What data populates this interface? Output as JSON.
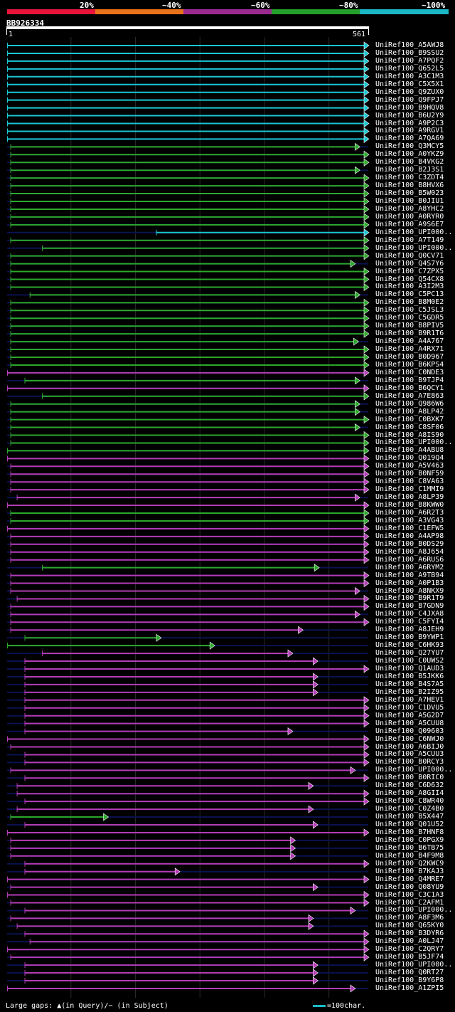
{
  "legend": {
    "labels": [
      "20%",
      "~40%",
      "~60%",
      "~80%",
      "~100%"
    ],
    "colors": [
      "#e8153a",
      "#e8731a",
      "#9b2a90",
      "#23a02a",
      "#1ab8c4"
    ]
  },
  "query": {
    "id": "BB926334",
    "start": "1",
    "end": "561",
    "length": 561
  },
  "colors": {
    "cyan": "#19c6d0",
    "green": "#2ca82c",
    "magenta": "#b43cb6",
    "navy": "#0b1250"
  },
  "hits": [
    {
      "name": "UniRef100_A5AWJ8",
      "c": "cyan",
      "s": 1,
      "e": 561
    },
    {
      "name": "UniRef100_B9SSU2",
      "c": "cyan",
      "s": 1,
      "e": 561
    },
    {
      "name": "UniRef100_A7PQF2",
      "c": "cyan",
      "s": 1,
      "e": 561
    },
    {
      "name": "UniRef100_Q652L5",
      "c": "cyan",
      "s": 1,
      "e": 561
    },
    {
      "name": "UniRef100_A3C1M3",
      "c": "cyan",
      "s": 1,
      "e": 561
    },
    {
      "name": "UniRef100_C5X5X1",
      "c": "cyan",
      "s": 1,
      "e": 561
    },
    {
      "name": "UniRef100_Q9ZUX0",
      "c": "cyan",
      "s": 1,
      "e": 561
    },
    {
      "name": "UniRef100_Q9FPJ7",
      "c": "cyan",
      "s": 1,
      "e": 561
    },
    {
      "name": "UniRef100_B9HQV8",
      "c": "cyan",
      "s": 1,
      "e": 561
    },
    {
      "name": "UniRef100_B6U2Y9",
      "c": "cyan",
      "s": 1,
      "e": 561
    },
    {
      "name": "UniRef100_A9P2C3",
      "c": "cyan",
      "s": 1,
      "e": 561
    },
    {
      "name": "UniRef100_A9RGV1",
      "c": "cyan",
      "s": 1,
      "e": 561
    },
    {
      "name": "UniRef100_A7QA69",
      "c": "cyan",
      "s": 1,
      "e": 561
    },
    {
      "name": "UniRef100_Q3MCY5",
      "c": "green",
      "s": 6,
      "e": 547
    },
    {
      "name": "UniRef100_A0YKZ9",
      "c": "green",
      "s": 6,
      "e": 561
    },
    {
      "name": "UniRef100_B4VKG2",
      "c": "green",
      "s": 6,
      "e": 561
    },
    {
      "name": "UniRef100_B2J3S1",
      "c": "green",
      "s": 6,
      "e": 547
    },
    {
      "name": "UniRef100_C3ZDT4",
      "c": "green",
      "s": 6,
      "e": 561
    },
    {
      "name": "UniRef100_B8HVX6",
      "c": "green",
      "s": 6,
      "e": 561
    },
    {
      "name": "UniRef100_B5W023",
      "c": "green",
      "s": 6,
      "e": 561
    },
    {
      "name": "UniRef100_B0JIU1",
      "c": "green",
      "s": 6,
      "e": 561
    },
    {
      "name": "UniRef100_A8YHC2",
      "c": "green",
      "s": 6,
      "e": 561
    },
    {
      "name": "UniRef100_A0RYR0",
      "c": "green",
      "s": 6,
      "e": 561
    },
    {
      "name": "UniRef100_A9S6E7",
      "c": "green",
      "s": 6,
      "e": 561
    },
    {
      "name": "UniRef100_UPI000..",
      "c": "cyan",
      "s": 232,
      "e": 561
    },
    {
      "name": "UniRef100_A7T149",
      "c": "green",
      "s": 6,
      "e": 561
    },
    {
      "name": "UniRef100_UPI000..",
      "c": "green",
      "s": 55,
      "e": 561
    },
    {
      "name": "UniRef100_Q0CV71",
      "c": "green",
      "s": 6,
      "e": 561
    },
    {
      "name": "UniRef100_Q4S7Y6",
      "c": "green",
      "s": 6,
      "e": 540
    },
    {
      "name": "UniRef100_C7ZPX5",
      "c": "green",
      "s": 6,
      "e": 561
    },
    {
      "name": "UniRef100_Q54CX8",
      "c": "green",
      "s": 6,
      "e": 561
    },
    {
      "name": "UniRef100_A3I2M3",
      "c": "green",
      "s": 6,
      "e": 561
    },
    {
      "name": "UniRef100_C5PC13",
      "c": "green",
      "s": 36,
      "e": 547
    },
    {
      "name": "UniRef100_B8M0E2",
      "c": "green",
      "s": 6,
      "e": 561
    },
    {
      "name": "UniRef100_C5JSL3",
      "c": "green",
      "s": 6,
      "e": 561
    },
    {
      "name": "UniRef100_C5GDR5",
      "c": "green",
      "s": 6,
      "e": 561
    },
    {
      "name": "UniRef100_B8PIV5",
      "c": "green",
      "s": 6,
      "e": 561
    },
    {
      "name": "UniRef100_B9R1T6",
      "c": "green",
      "s": 6,
      "e": 561
    },
    {
      "name": "UniRef100_A4A767",
      "c": "green",
      "s": 6,
      "e": 545
    },
    {
      "name": "UniRef100_A4RX71",
      "c": "green",
      "s": 6,
      "e": 561
    },
    {
      "name": "UniRef100_B0D967",
      "c": "green",
      "s": 6,
      "e": 561
    },
    {
      "name": "UniRef100_B6KPS4",
      "c": "green",
      "s": 6,
      "e": 561
    },
    {
      "name": "UniRef100_C0NDE3",
      "c": "magenta",
      "s": 1,
      "e": 561
    },
    {
      "name": "UniRef100_B9TJP4",
      "c": "green",
      "s": 28,
      "e": 547
    },
    {
      "name": "UniRef100_B6QCY1",
      "c": "magenta",
      "s": 1,
      "e": 561
    },
    {
      "name": "UniRef100_A7E863",
      "c": "green",
      "s": 55,
      "e": 561
    },
    {
      "name": "UniRef100_Q986W6",
      "c": "green",
      "s": 6,
      "e": 547
    },
    {
      "name": "UniRef100_A8LP42",
      "c": "green",
      "s": 6,
      "e": 547
    },
    {
      "name": "UniRef100_C0BXK7",
      "c": "green",
      "s": 6,
      "e": 561
    },
    {
      "name": "UniRef100_C8SF06",
      "c": "green",
      "s": 6,
      "e": 547
    },
    {
      "name": "UniRef100_A8IS90",
      "c": "green",
      "s": 6,
      "e": 561
    },
    {
      "name": "UniRef100_UPI000..",
      "c": "green",
      "s": 6,
      "e": 561
    },
    {
      "name": "UniRef100_A4ABU8",
      "c": "green",
      "s": 1,
      "e": 561
    },
    {
      "name": "UniRef100_Q019Q4",
      "c": "magenta",
      "s": 1,
      "e": 561
    },
    {
      "name": "UniRef100_A5V463",
      "c": "magenta",
      "s": 6,
      "e": 561
    },
    {
      "name": "UniRef100_B0NF59",
      "c": "magenta",
      "s": 6,
      "e": 561
    },
    {
      "name": "UniRef100_C8VA63",
      "c": "magenta",
      "s": 6,
      "e": 561
    },
    {
      "name": "UniRef100_C1MMI9",
      "c": "magenta",
      "s": 6,
      "e": 561
    },
    {
      "name": "UniRef100_A8LP39",
      "c": "magenta",
      "s": 16,
      "e": 547
    },
    {
      "name": "UniRef100_B8KWW0",
      "c": "magenta",
      "s": 1,
      "e": 561
    },
    {
      "name": "UniRef100_A6R2T3",
      "c": "green",
      "s": 6,
      "e": 561
    },
    {
      "name": "UniRef100_A3VG43",
      "c": "green",
      "s": 6,
      "e": 561
    },
    {
      "name": "UniRef100_C1EFW5",
      "c": "magenta",
      "s": 1,
      "e": 561
    },
    {
      "name": "UniRef100_A4AP98",
      "c": "magenta",
      "s": 6,
      "e": 561
    },
    {
      "name": "UniRef100_B0DS29",
      "c": "magenta",
      "s": 6,
      "e": 561
    },
    {
      "name": "UniRef100_A8J654",
      "c": "magenta",
      "s": 6,
      "e": 561
    },
    {
      "name": "UniRef100_A6RUS6",
      "c": "magenta",
      "s": 6,
      "e": 561
    },
    {
      "name": "UniRef100_A6RYM2",
      "c": "green",
      "s": 55,
      "e": 484
    },
    {
      "name": "UniRef100_A9TB94",
      "c": "magenta",
      "s": 6,
      "e": 561
    },
    {
      "name": "UniRef100_A0P1B3",
      "c": "magenta",
      "s": 6,
      "e": 561
    },
    {
      "name": "UniRef100_A8NKX9",
      "c": "magenta",
      "s": 6,
      "e": 547
    },
    {
      "name": "UniRef100_B9R1T9",
      "c": "magenta",
      "s": 16,
      "e": 561
    },
    {
      "name": "UniRef100_B7GDN9",
      "c": "magenta",
      "s": 6,
      "e": 561
    },
    {
      "name": "UniRef100_C4JXA8",
      "c": "magenta",
      "s": 6,
      "e": 547
    },
    {
      "name": "UniRef100_C5FYI4",
      "c": "magenta",
      "s": 6,
      "e": 561
    },
    {
      "name": "UniRef100_A8JEH9",
      "c": "magenta",
      "s": 6,
      "e": 459
    },
    {
      "name": "UniRef100_B9YWP1",
      "c": "green",
      "s": 28,
      "e": 239
    },
    {
      "name": "UniRef100_C6HK93",
      "c": "green",
      "s": 1,
      "e": 322
    },
    {
      "name": "UniRef100_Q27YU7",
      "c": "magenta",
      "s": 55,
      "e": 443
    },
    {
      "name": "UniRef100_C0UWS2",
      "c": "magenta",
      "s": 28,
      "e": 482
    },
    {
      "name": "UniRef100_Q1AUD3",
      "c": "magenta",
      "s": 28,
      "e": 561
    },
    {
      "name": "UniRef100_B5JKK6",
      "c": "magenta",
      "s": 28,
      "e": 482
    },
    {
      "name": "UniRef100_B4S7A5",
      "c": "magenta",
      "s": 28,
      "e": 482
    },
    {
      "name": "UniRef100_B2IZ95",
      "c": "magenta",
      "s": 28,
      "e": 482
    },
    {
      "name": "UniRef100_A7HEV1",
      "c": "magenta",
      "s": 28,
      "e": 561
    },
    {
      "name": "UniRef100_C1DVU5",
      "c": "magenta",
      "s": 28,
      "e": 561
    },
    {
      "name": "UniRef100_A5G2D7",
      "c": "magenta",
      "s": 28,
      "e": 561
    },
    {
      "name": "UniRef100_A5CUU8",
      "c": "magenta",
      "s": 28,
      "e": 561
    },
    {
      "name": "UniRef100_Q09603",
      "c": "magenta",
      "s": 28,
      "e": 443
    },
    {
      "name": "UniRef100_C6NWJ0",
      "c": "magenta",
      "s": 1,
      "e": 561
    },
    {
      "name": "UniRef100_A6BIJ0",
      "c": "magenta",
      "s": 6,
      "e": 561
    },
    {
      "name": "UniRef100_A5CUU3",
      "c": "magenta",
      "s": 28,
      "e": 561
    },
    {
      "name": "UniRef100_B0RCY3",
      "c": "magenta",
      "s": 28,
      "e": 561
    },
    {
      "name": "UniRef100_UPI000..",
      "c": "magenta",
      "s": 6,
      "e": 540
    },
    {
      "name": "UniRef100_B0RIC0",
      "c": "magenta",
      "s": 28,
      "e": 561
    },
    {
      "name": "UniRef100_C6D632",
      "c": "magenta",
      "s": 16,
      "e": 475
    },
    {
      "name": "UniRef100_A8GII4",
      "c": "magenta",
      "s": 16,
      "e": 561
    },
    {
      "name": "UniRef100_C8WR40",
      "c": "magenta",
      "s": 28,
      "e": 561
    },
    {
      "name": "UniRef100_C0Z4B0",
      "c": "magenta",
      "s": 16,
      "e": 475
    },
    {
      "name": "UniRef100_B5X447",
      "c": "green",
      "s": 6,
      "e": 157
    },
    {
      "name": "UniRef100_Q01U52",
      "c": "magenta",
      "s": 28,
      "e": 482
    },
    {
      "name": "UniRef100_B7HNF8",
      "c": "magenta",
      "s": 1,
      "e": 561
    },
    {
      "name": "UniRef100_C0PGX9",
      "c": "magenta",
      "s": 6,
      "e": 447
    },
    {
      "name": "UniRef100_B6TB75",
      "c": "magenta",
      "s": 6,
      "e": 447
    },
    {
      "name": "UniRef100_B4F9M8",
      "c": "magenta",
      "s": 6,
      "e": 447
    },
    {
      "name": "UniRef100_Q2KWC9",
      "c": "magenta",
      "s": 28,
      "e": 561
    },
    {
      "name": "UniRef100_B7KAJ3",
      "c": "magenta",
      "s": 28,
      "e": 268
    },
    {
      "name": "UniRef100_Q4MRE7",
      "c": "magenta",
      "s": 1,
      "e": 561
    },
    {
      "name": "UniRef100_Q08YU9",
      "c": "magenta",
      "s": 6,
      "e": 482
    },
    {
      "name": "UniRef100_C3C1A3",
      "c": "magenta",
      "s": 1,
      "e": 561
    },
    {
      "name": "UniRef100_C2AFM1",
      "c": "magenta",
      "s": 6,
      "e": 561
    },
    {
      "name": "UniRef100_UPI000..",
      "c": "magenta",
      "s": 28,
      "e": 540
    },
    {
      "name": "UniRef100_A8F3M6",
      "c": "magenta",
      "s": 6,
      "e": 475
    },
    {
      "name": "UniRef100_Q65KY0",
      "c": "magenta",
      "s": 16,
      "e": 475
    },
    {
      "name": "UniRef100_B3DYR6",
      "c": "magenta",
      "s": 28,
      "e": 561
    },
    {
      "name": "UniRef100_A0LJ47",
      "c": "magenta",
      "s": 36,
      "e": 561
    },
    {
      "name": "UniRef100_C2QRY7",
      "c": "magenta",
      "s": 1,
      "e": 561
    },
    {
      "name": "UniRef100_B5JF74",
      "c": "magenta",
      "s": 6,
      "e": 561
    },
    {
      "name": "UniRef100_UPI000..",
      "c": "magenta",
      "s": 28,
      "e": 482
    },
    {
      "name": "UniRef100_Q0RT27",
      "c": "magenta",
      "s": 28,
      "e": 482
    },
    {
      "name": "UniRef100_B9Y6P8",
      "c": "magenta",
      "s": 28,
      "e": 482
    },
    {
      "name": "UniRef100_A1ZPI5",
      "c": "magenta",
      "s": 1,
      "e": 540
    }
  ],
  "footer": {
    "text": "Large gaps: ▲(in Query)/− (in Subject)",
    "scale": "=100char."
  }
}
